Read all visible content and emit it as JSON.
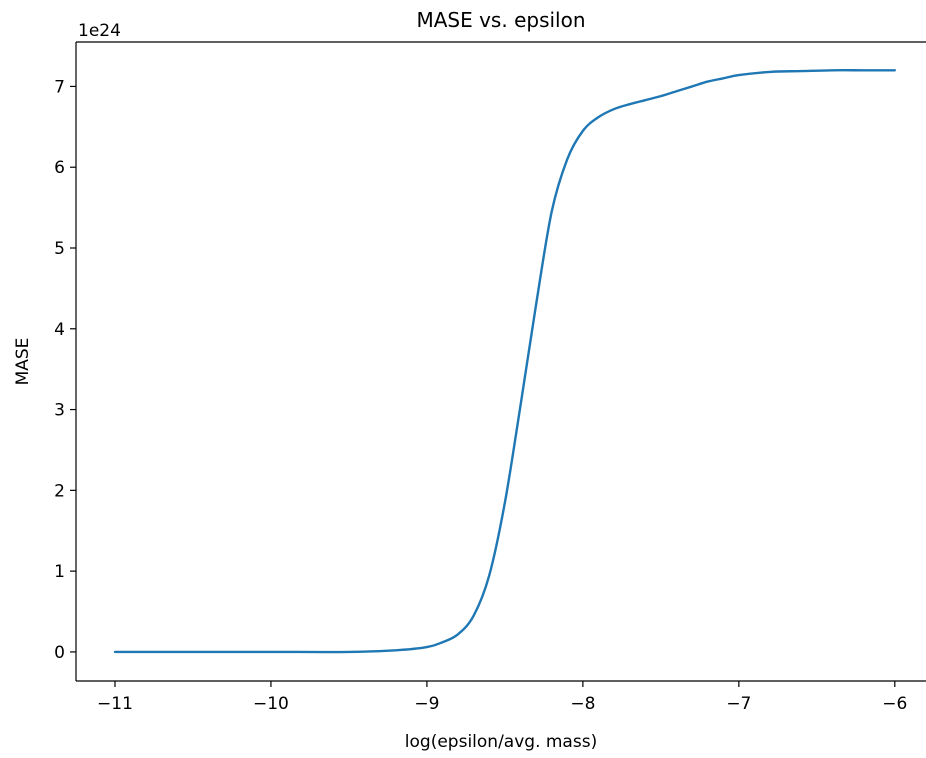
{
  "chart_data": {
    "type": "line",
    "title": "MASE vs. epsilon",
    "xlabel": "log(epsilon/avg. mass)",
    "ylabel": "MASE",
    "y_offset_label": "1e24",
    "xlim": [
      -11.25,
      -5.8
    ],
    "ylim": [
      -0.36,
      7.55
    ],
    "x_ticks": [
      -11,
      -10,
      -9,
      -8,
      -7,
      -6
    ],
    "x_tick_labels": [
      "−11",
      "−10",
      "−9",
      "−8",
      "−7",
      "−6"
    ],
    "y_ticks": [
      0,
      1,
      2,
      3,
      4,
      5,
      6,
      7
    ],
    "y_tick_labels": [
      "0",
      "1",
      "2",
      "3",
      "4",
      "5",
      "6",
      "7"
    ],
    "grid": false,
    "line_color": "#1f77b4",
    "series": [
      {
        "x": [
          -11.0,
          -10.5,
          -10.0,
          -9.5,
          -9.2,
          -9.0,
          -8.9,
          -8.8,
          -8.7,
          -8.6,
          -8.5,
          -8.4,
          -8.3,
          -8.2,
          -8.1,
          -8.0,
          -7.9,
          -7.8,
          -7.7,
          -7.6,
          -7.5,
          -7.4,
          -7.3,
          -7.2,
          -7.1,
          -7.0,
          -6.8,
          -6.6,
          -6.4,
          -6.2,
          -6.0
        ],
        "y": [
          0.0,
          0.0,
          0.0,
          0.0,
          0.02,
          0.06,
          0.12,
          0.22,
          0.45,
          0.95,
          1.85,
          3.05,
          4.3,
          5.45,
          6.1,
          6.45,
          6.62,
          6.72,
          6.78,
          6.83,
          6.88,
          6.94,
          7.0,
          7.06,
          7.1,
          7.14,
          7.18,
          7.19,
          7.2,
          7.2,
          7.2
        ]
      }
    ]
  }
}
